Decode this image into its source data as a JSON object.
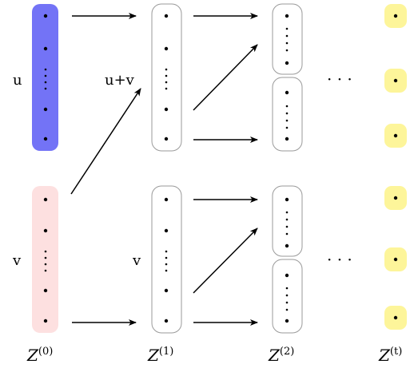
{
  "colors": {
    "u_bar": "#7373f6",
    "v_bar": "#fde0e0",
    "final_node": "#fdf59a",
    "outline": "#9a9a9a",
    "ink": "#000000"
  },
  "vectors": {
    "u_label": "u",
    "v_label": "v",
    "sum_label": "u+v",
    "v_copy_label": "v"
  },
  "columns": [
    {
      "label_base": "Z",
      "label_sup": "(0)"
    },
    {
      "label_base": "Z",
      "label_sup": "(1)"
    },
    {
      "label_base": "Z",
      "label_sup": "(2)"
    },
    {
      "label_base": "Z",
      "label_sup": "(t)"
    }
  ],
  "ellipsis": "· · ·"
}
